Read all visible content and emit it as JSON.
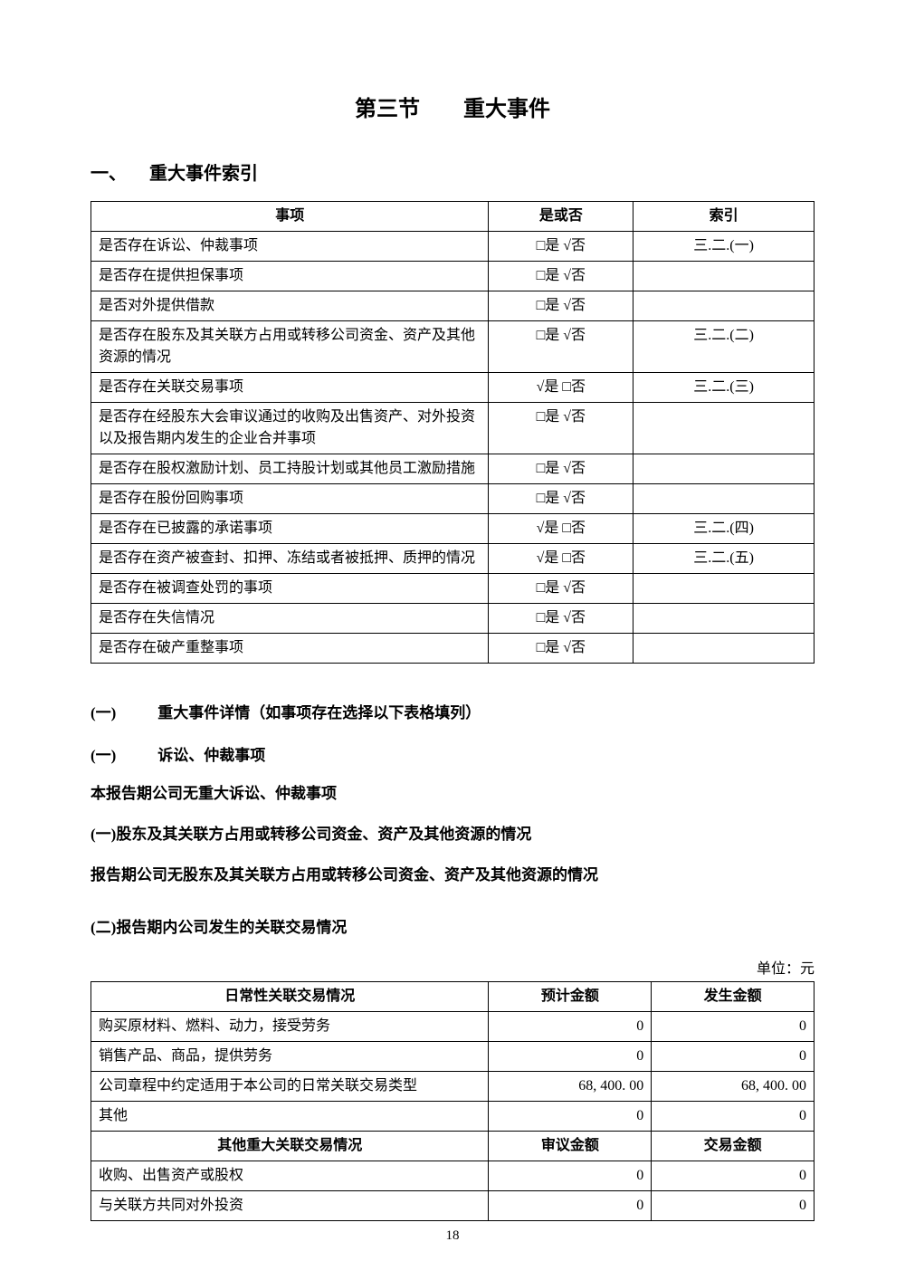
{
  "page_number": "18",
  "section_title": "第三节　　重大事件",
  "heading1": {
    "num": "一、",
    "text": "重大事件索引"
  },
  "index_table": {
    "headers": [
      "事项",
      "是或否",
      "索引"
    ],
    "rows": [
      {
        "item": "是否存在诉讼、仲裁事项",
        "yn": "□是  √否",
        "idx": "三.二.(一)"
      },
      {
        "item": "是否存在提供担保事项",
        "yn": "□是  √否",
        "idx": ""
      },
      {
        "item": "是否对外提供借款",
        "yn": "□是  √否",
        "idx": ""
      },
      {
        "item": "是否存在股东及其关联方占用或转移公司资金、资产及其他资源的情况",
        "yn": "□是  √否",
        "idx": "三.二.(二)"
      },
      {
        "item": "是否存在关联交易事项",
        "yn": "√是  □否",
        "idx": "三.二.(三)"
      },
      {
        "item": "是否存在经股东大会审议通过的收购及出售资产、对外投资以及报告期内发生的企业合并事项",
        "yn": "□是  √否",
        "idx": ""
      },
      {
        "item": "是否存在股权激励计划、员工持股计划或其他员工激励措施",
        "yn": "□是  √否",
        "idx": ""
      },
      {
        "item": "是否存在股份回购事项",
        "yn": "□是  √否",
        "idx": ""
      },
      {
        "item": "是否存在已披露的承诺事项",
        "yn": "√是  □否",
        "idx": "三.二.(四)"
      },
      {
        "item": "是否存在资产被查封、扣押、冻结或者被抵押、质押的情况",
        "yn": "√是  □否",
        "idx": "三.二.(五)"
      },
      {
        "item": "是否存在被调查处罚的事项",
        "yn": "□是  √否",
        "idx": ""
      },
      {
        "item": "是否存在失信情况",
        "yn": "□是  √否",
        "idx": ""
      },
      {
        "item": "是否存在破产重整事项",
        "yn": "□是  √否",
        "idx": ""
      }
    ]
  },
  "heading2": {
    "num": "(一)",
    "text": "重大事件详情（如事项存在选择以下表格填列）"
  },
  "sub1": {
    "num": "(一)",
    "text": "诉讼、仲裁事项"
  },
  "text1": "本报告期公司无重大诉讼、仲裁事项",
  "sub2": "(一)股东及其关联方占用或转移公司资金、资产及其他资源的情况",
  "text2": "报告期公司无股东及其关联方占用或转移公司资金、资产及其他资源的情况",
  "sub3": "(二)报告期内公司发生的关联交易情况",
  "unit": "单位：元",
  "related_table": {
    "header1": [
      "日常性关联交易情况",
      "预计金额",
      "发生金额"
    ],
    "rows1": [
      {
        "item": "购买原材料、燃料、动力，接受劳务",
        "a": "0",
        "b": "0"
      },
      {
        "item": "销售产品、商品，提供劳务",
        "a": "0",
        "b": "0"
      },
      {
        "item": "公司章程中约定适用于本公司的日常关联交易类型",
        "a": "68, 400. 00",
        "b": "68, 400. 00"
      },
      {
        "item": "其他",
        "a": "0",
        "b": "0"
      }
    ],
    "header2": [
      "其他重大关联交易情况",
      "审议金额",
      "交易金额"
    ],
    "rows2": [
      {
        "item": "收购、出售资产或股权",
        "a": "0",
        "b": "0"
      },
      {
        "item": "与关联方共同对外投资",
        "a": "0",
        "b": "0"
      }
    ]
  },
  "col_widths": {
    "item": "55%",
    "amt": "22.5%"
  }
}
